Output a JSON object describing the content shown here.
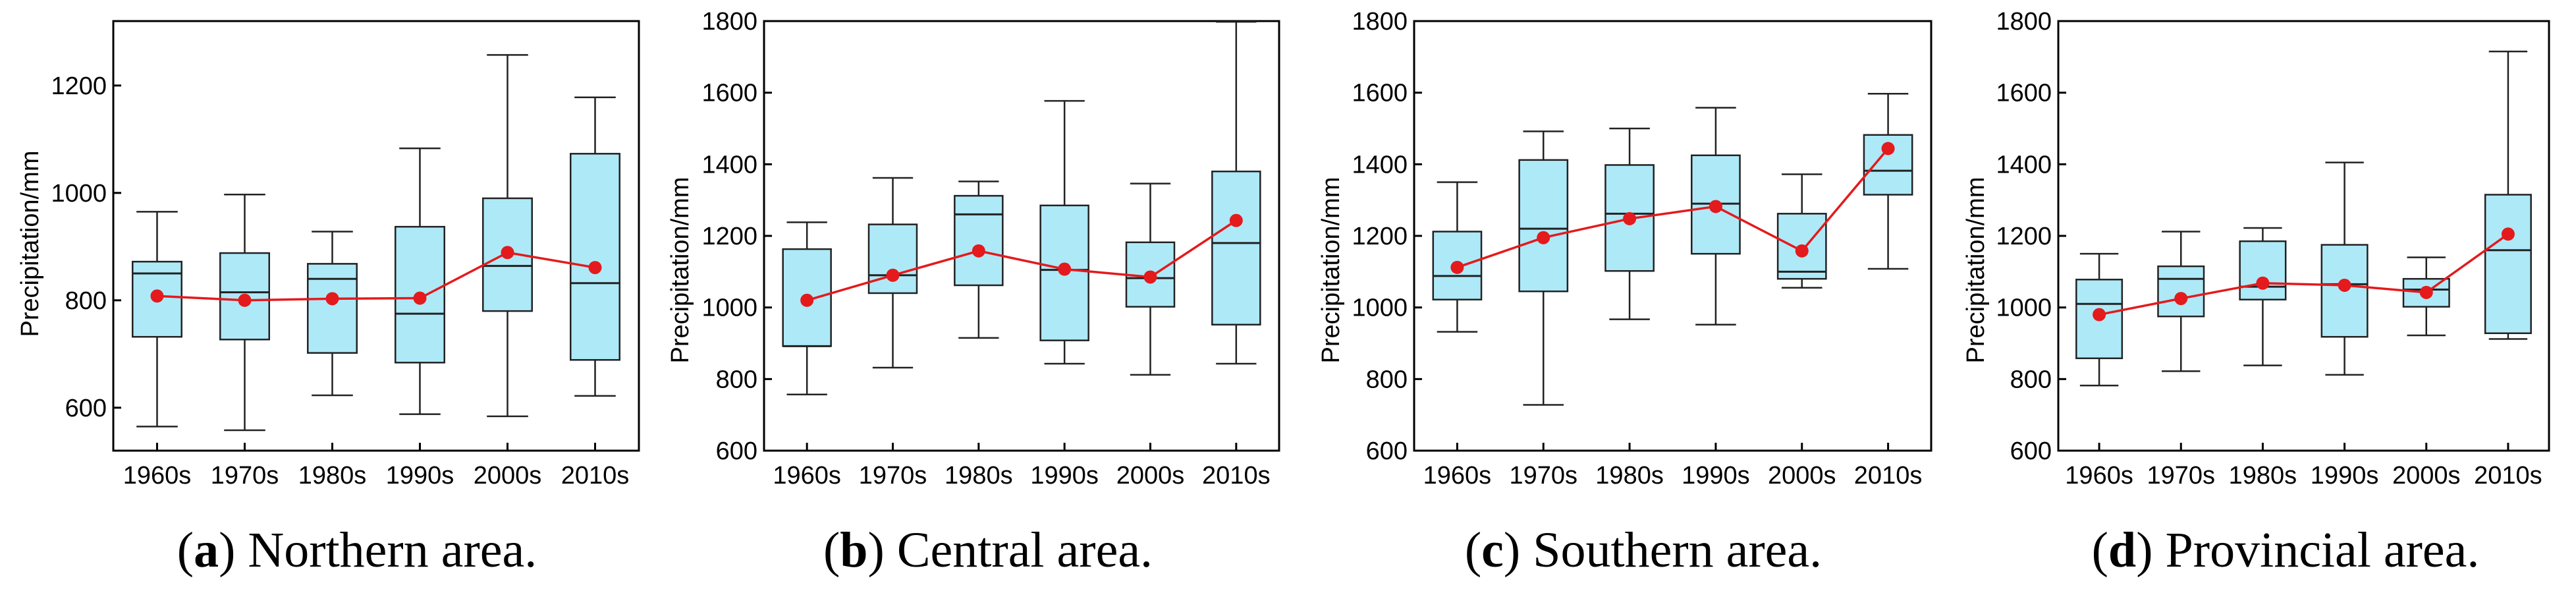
{
  "figure": {
    "style": {
      "box_fill": "#aee9f8",
      "box_stroke": "#222222",
      "mean_color": "#e41a1c",
      "axis_color": "#000000"
    }
  },
  "chart_data": [
    {
      "type": "box",
      "caption_letter": "a",
      "caption_text": " Northern area.",
      "ylabel": "Precipitation/mm",
      "categories": [
        "1960s",
        "1970s",
        "1980s",
        "1990s",
        "2000s",
        "2010s"
      ],
      "ylim": [
        520,
        1320
      ],
      "yticks": [
        600,
        800,
        1000,
        1200
      ],
      "boxes": [
        {
          "min": 565,
          "q1": 732,
          "median": 850,
          "q3": 872,
          "max": 965
        },
        {
          "min": 558,
          "q1": 727,
          "median": 815,
          "q3": 888,
          "max": 997
        },
        {
          "min": 623,
          "q1": 702,
          "median": 840,
          "q3": 868,
          "max": 928
        },
        {
          "min": 588,
          "q1": 684,
          "median": 775,
          "q3": 937,
          "max": 1083
        },
        {
          "min": 584,
          "q1": 780,
          "median": 864,
          "q3": 990,
          "max": 1257
        },
        {
          "min": 622,
          "q1": 689,
          "median": 832,
          "q3": 1073,
          "max": 1178
        }
      ],
      "means": [
        808,
        800,
        803,
        804,
        889,
        861
      ]
    },
    {
      "type": "box",
      "caption_letter": "b",
      "caption_text": " Central area.",
      "ylabel": "Precipitation/mm",
      "categories": [
        "1960s",
        "1970s",
        "1980s",
        "1990s",
        "2000s",
        "2010s"
      ],
      "ylim": [
        600,
        1800
      ],
      "yticks": [
        600,
        800,
        1000,
        1200,
        1400,
        1600,
        1800
      ],
      "boxes": [
        {
          "min": 757,
          "q1": 892,
          "median": 892,
          "q3": 1163,
          "max": 1238
        },
        {
          "min": 832,
          "q1": 1040,
          "median": 1090,
          "q3": 1232,
          "max": 1362
        },
        {
          "min": 915,
          "q1": 1062,
          "median": 1260,
          "q3": 1312,
          "max": 1352
        },
        {
          "min": 843,
          "q1": 908,
          "median": 1105,
          "q3": 1285,
          "max": 1577
        },
        {
          "min": 812,
          "q1": 1002,
          "median": 1082,
          "q3": 1182,
          "max": 1346
        },
        {
          "min": 843,
          "q1": 952,
          "median": 1180,
          "q3": 1380,
          "max": 1798
        }
      ],
      "means": [
        1020,
        1090,
        1158,
        1107,
        1085,
        1243
      ]
    },
    {
      "type": "box",
      "caption_letter": "c",
      "caption_text": " Southern area.",
      "ylabel": "Precipitation/mm",
      "categories": [
        "1960s",
        "1970s",
        "1980s",
        "1990s",
        "2000s",
        "2010s"
      ],
      "ylim": [
        600,
        1800
      ],
      "yticks": [
        600,
        800,
        1000,
        1200,
        1400,
        1600,
        1800
      ],
      "boxes": [
        {
          "min": 932,
          "q1": 1022,
          "median": 1088,
          "q3": 1212,
          "max": 1350
        },
        {
          "min": 728,
          "q1": 1045,
          "median": 1220,
          "q3": 1412,
          "max": 1492
        },
        {
          "min": 967,
          "q1": 1102,
          "median": 1262,
          "q3": 1398,
          "max": 1500
        },
        {
          "min": 952,
          "q1": 1150,
          "median": 1290,
          "q3": 1425,
          "max": 1558
        },
        {
          "min": 1055,
          "q1": 1080,
          "median": 1100,
          "q3": 1262,
          "max": 1372
        },
        {
          "min": 1108,
          "q1": 1315,
          "median": 1382,
          "q3": 1482,
          "max": 1597
        }
      ],
      "means": [
        1112,
        1195,
        1248,
        1282,
        1158,
        1444
      ]
    },
    {
      "type": "box",
      "caption_letter": "d",
      "caption_text": " Provincial area.",
      "ylabel": "Precipitation/mm",
      "categories": [
        "1960s",
        "1970s",
        "1980s",
        "1990s",
        "2000s",
        "2010s"
      ],
      "ylim": [
        600,
        1800
      ],
      "yticks": [
        600,
        800,
        1000,
        1200,
        1400,
        1600,
        1800
      ],
      "boxes": [
        {
          "min": 782,
          "q1": 858,
          "median": 1010,
          "q3": 1078,
          "max": 1150
        },
        {
          "min": 822,
          "q1": 975,
          "median": 1080,
          "q3": 1115,
          "max": 1212
        },
        {
          "min": 838,
          "q1": 1022,
          "median": 1058,
          "q3": 1185,
          "max": 1222
        },
        {
          "min": 812,
          "q1": 918,
          "median": 1065,
          "q3": 1175,
          "max": 1405
        },
        {
          "min": 922,
          "q1": 1002,
          "median": 1050,
          "q3": 1080,
          "max": 1140
        },
        {
          "min": 912,
          "q1": 928,
          "median": 1160,
          "q3": 1315,
          "max": 1715
        }
      ],
      "means": [
        980,
        1025,
        1068,
        1062,
        1042,
        1205
      ]
    }
  ]
}
